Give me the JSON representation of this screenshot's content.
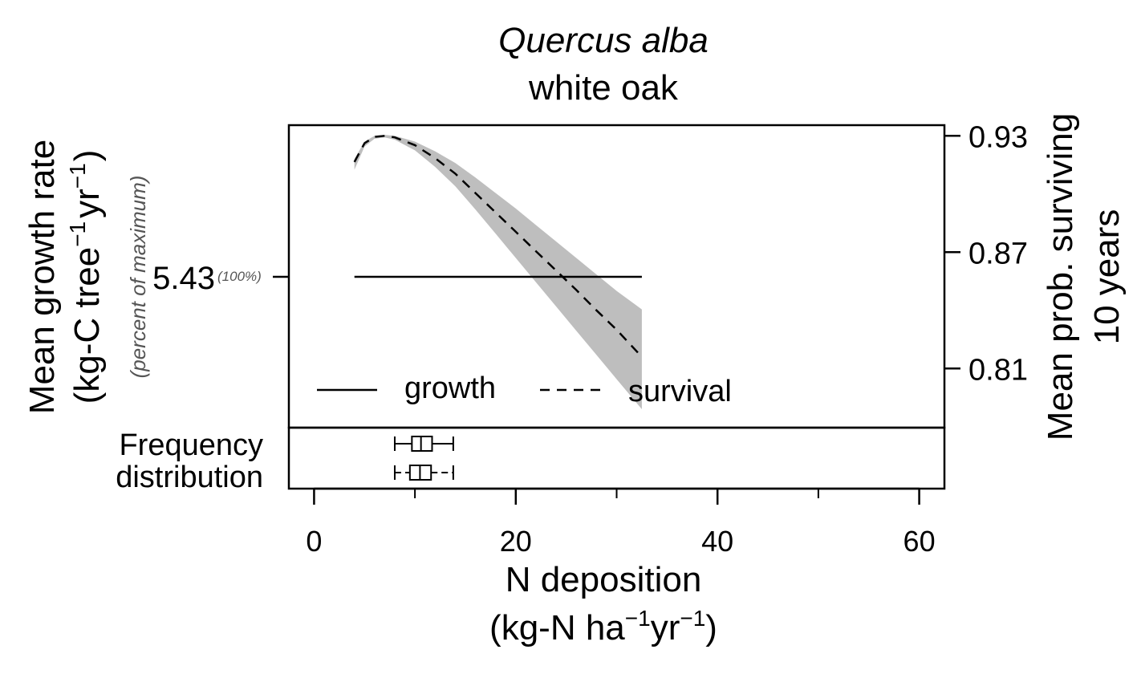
{
  "chart_data": {
    "type": "line",
    "title": "Quercus alba",
    "subtitle": "white oak",
    "x_axis": {
      "label_line1": "N deposition",
      "label_line2": "(kg-N ha",
      "label_line2_unit2": "yr",
      "label_line2_close": ")",
      "superscript": "−1",
      "range": [
        -2.5,
        62.5
      ],
      "ticks": [
        0,
        20,
        40,
        60
      ],
      "tick_labels": [
        "0",
        "20",
        "40",
        "60"
      ],
      "minor_ticks": [
        10,
        30,
        50
      ]
    },
    "y_left": {
      "label_line1": "Mean growth rate",
      "label_line2": "(kg-C tree",
      "label_line2_unit2": "yr",
      "label_line2_close": ")",
      "superscript": "−1",
      "sublabel": "(percent of maximum)",
      "tick_value": "5.43",
      "tick_pct": "(100%)"
    },
    "y_right": {
      "label_line1": "Mean prob. surviving",
      "label_line2": "10 years",
      "range": [
        0.7795,
        0.9355
      ],
      "ticks": [
        0.93,
        0.87,
        0.81
      ],
      "tick_labels": [
        "0.93",
        "0.87",
        "0.81"
      ]
    },
    "series": [
      {
        "name": "growth",
        "line": "solid",
        "axis": "left",
        "x": [
          4.0,
          32.5
        ],
        "y_relative": [
          1.0,
          1.0
        ]
      },
      {
        "name": "survival",
        "line": "dashed",
        "axis": "right",
        "x": [
          4.0,
          5.0,
          6.0,
          7.0,
          8.0,
          10.0,
          12.0,
          14.0,
          16.0,
          18.0,
          20.0,
          22.0,
          24.0,
          26.0,
          28.0,
          30.0,
          32.5
        ],
        "y": [
          0.9165,
          0.9262,
          0.9295,
          0.93,
          0.9292,
          0.9252,
          0.9185,
          0.9105,
          0.9005,
          0.8905,
          0.8805,
          0.8705,
          0.8605,
          0.8505,
          0.84,
          0.83,
          0.816
        ],
        "band_upper": [
          0.918,
          0.927,
          0.93,
          0.9305,
          0.93,
          0.927,
          0.922,
          0.916,
          0.9085,
          0.9005,
          0.8925,
          0.884,
          0.8755,
          0.867,
          0.8585,
          0.85,
          0.8405
        ],
        "band_lower": [
          0.9125,
          0.9245,
          0.9285,
          0.9292,
          0.928,
          0.9225,
          0.914,
          0.904,
          0.892,
          0.8795,
          0.867,
          0.8545,
          0.842,
          0.8295,
          0.817,
          0.8045,
          0.789
        ]
      }
    ],
    "band_color": "#bebebe",
    "legend": {
      "position": "bottom-left",
      "entries": [
        {
          "label": "growth",
          "line": "solid"
        },
        {
          "label": "survival",
          "line": "dashed"
        }
      ]
    },
    "frequency_distribution": {
      "label_line1": "Frequency",
      "label_line2": "distribution",
      "boxplots": [
        {
          "whisker_low": 8.0,
          "q1": 9.7,
          "median": 10.6,
          "q3": 11.7,
          "whisker_high": 13.8
        },
        {
          "whisker_low": 8.0,
          "q1": 9.5,
          "median": 10.5,
          "q3": 11.6,
          "whisker_high": 13.8
        }
      ]
    }
  }
}
